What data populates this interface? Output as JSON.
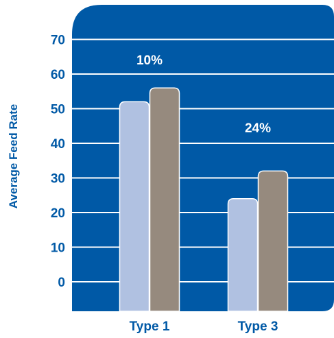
{
  "chart_data": {
    "type": "bar",
    "ylabel": "Average Feed Rate",
    "categories": [
      "Type 1",
      "Type 3"
    ],
    "series": [
      {
        "values": [
          52,
          56
        ],
        "color": "#b0c1e1"
      },
      {
        "values": [
          24,
          32
        ],
        "color": "#968a7e"
      }
    ],
    "grouping_note": "",
    "yticks": [
      0,
      10,
      20,
      30,
      40,
      50,
      60,
      70
    ],
    "ylim": [
      0,
      70
    ],
    "annotations": [
      "10%",
      "24%"
    ],
    "grid": true,
    "colors": {
      "panel": "#0059a6",
      "grid": "#ffffff",
      "text": "#0059a6",
      "bar_light": "#b0c1e1",
      "bar_dark": "#968a7e"
    }
  }
}
